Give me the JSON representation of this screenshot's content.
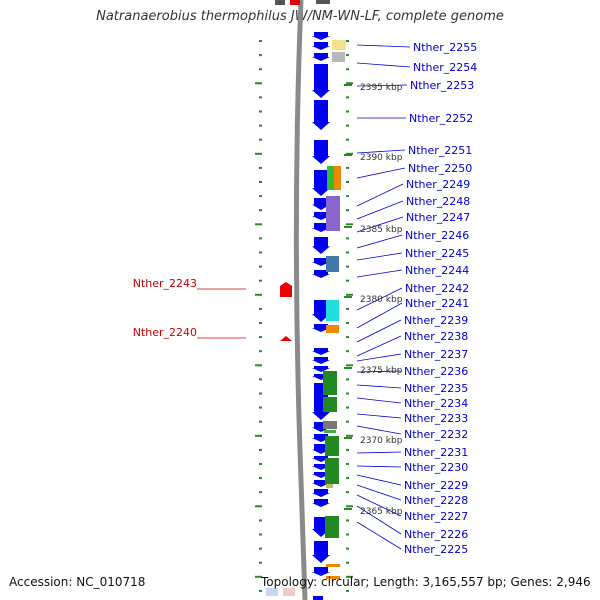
{
  "header": {
    "title": "Natranaerobius thermophilus JW/NM-WN-LF, complete genome"
  },
  "footer": {
    "accession": "Accession: NC_010718",
    "summary": "Topology: circular; Length: 3,165,557 bp; Genes: 2,946"
  },
  "colors": {
    "forward_cds": "#0000ee",
    "reverse_cds": "#ee0000",
    "backbone": "#888888",
    "tick": "#2a8a2a",
    "label_forward": "#0000cc",
    "label_reverse": "#cc0000"
  },
  "position_markers": [
    "2395 kbp",
    "2390 kbp",
    "2385 kbp",
    "2380 kbp",
    "2375 kbp",
    "2370 kbp",
    "2365 kbp"
  ],
  "forward_gene_labels": [
    "Nther_2255",
    "Nther_2254",
    "Nther_2253",
    "Nther_2252",
    "Nther_2251",
    "Nther_2250",
    "Nther_2249",
    "Nther_2248",
    "Nther_2247",
    "Nther_2246",
    "Nther_2245",
    "Nther_2244",
    "Nther_2242",
    "Nther_2241",
    "Nther_2239",
    "Nther_2238",
    "Nther_2237",
    "Nther_2236",
    "Nther_2235",
    "Nther_2234",
    "Nther_2233",
    "Nther_2232",
    "Nther_2231",
    "Nther_2230",
    "Nther_2229",
    "Nther_2228",
    "Nther_2227",
    "Nther_2226",
    "Nther_2225"
  ],
  "reverse_gene_labels": [
    "Nther_2243",
    "Nther_2240"
  ]
}
